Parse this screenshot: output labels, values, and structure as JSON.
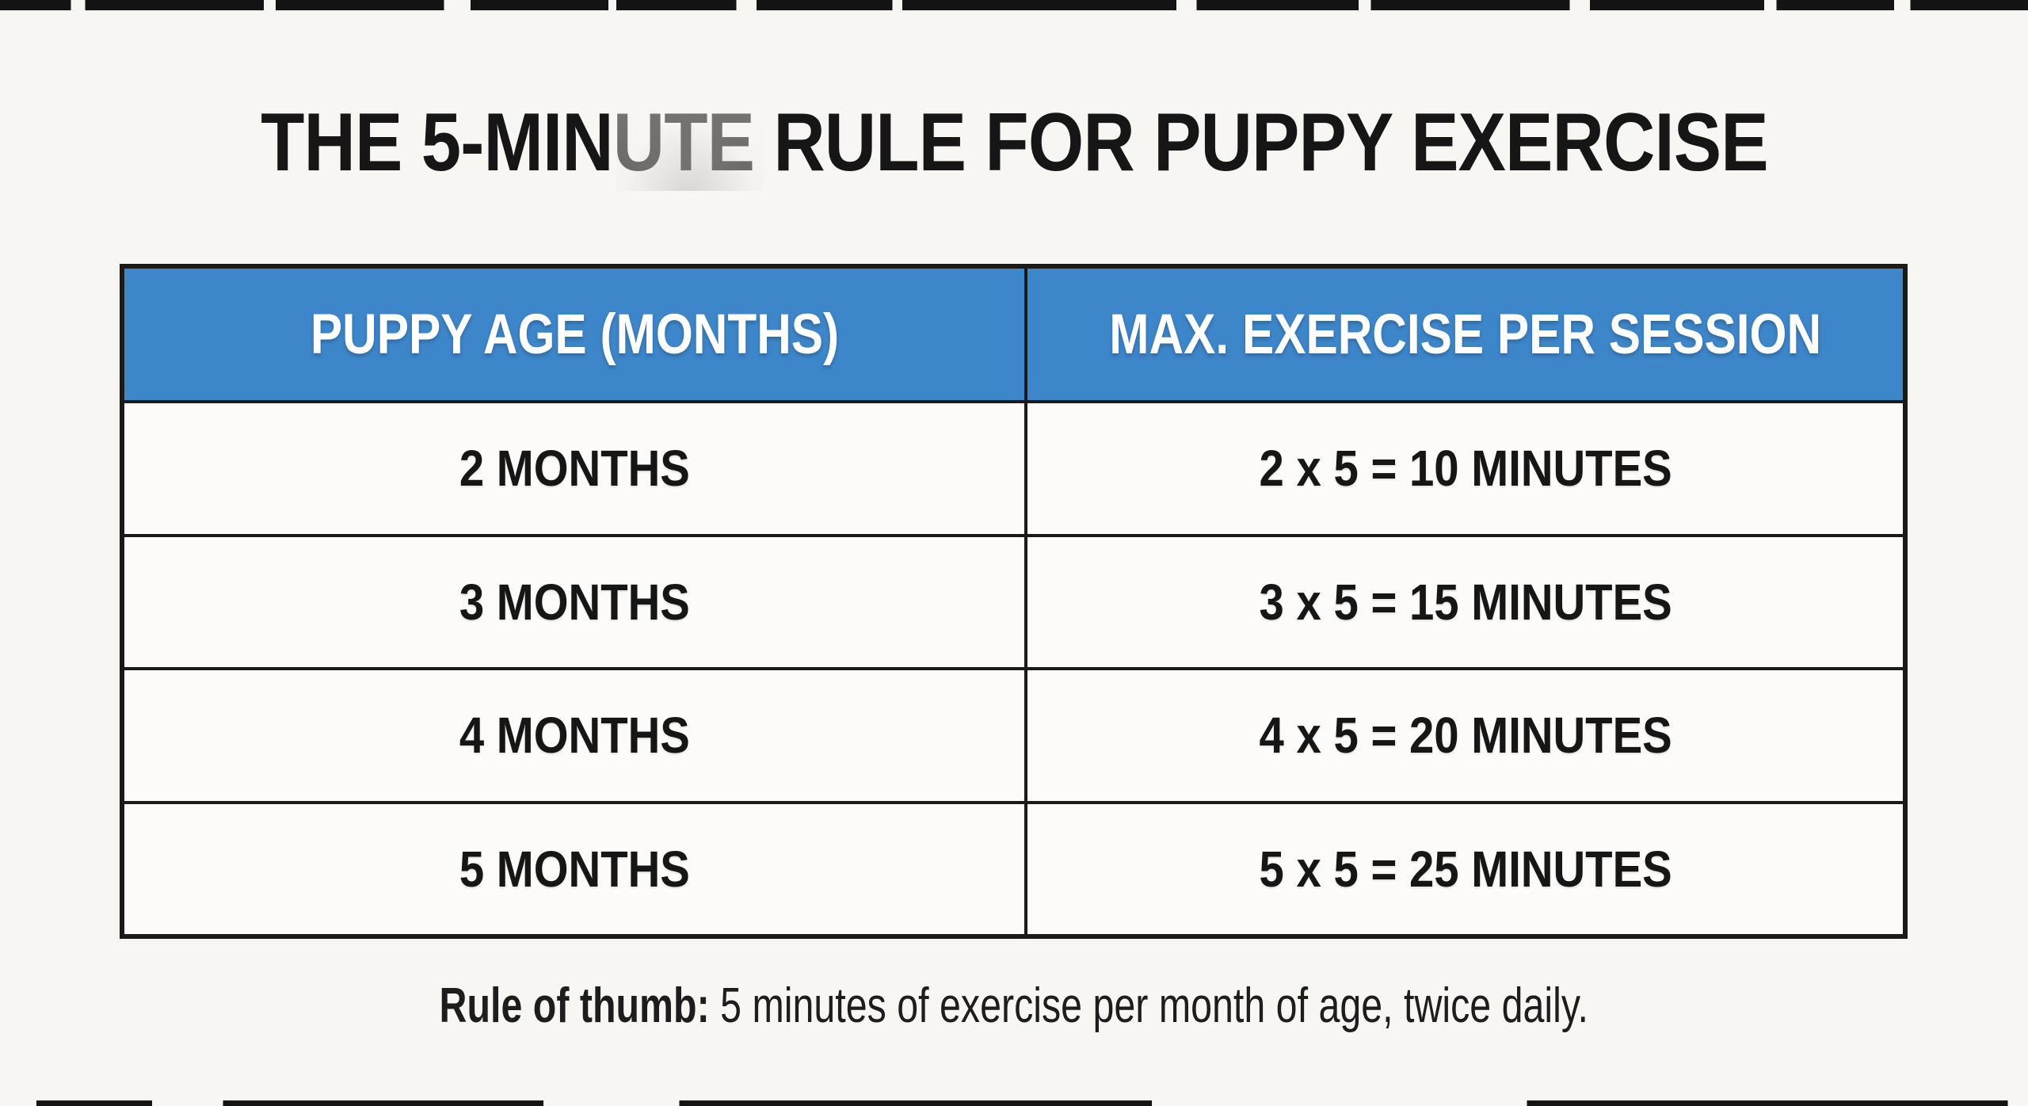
{
  "title": "THE 5-MINUTE RULE FOR PUPPY EXERCISE",
  "table": {
    "headers": [
      "PUPPY AGE (MONTHS)",
      "MAX. EXERCISE PER SESSION"
    ],
    "rows": [
      {
        "age": "2 MONTHS",
        "exercise": "2 x 5 = 10 MINUTES"
      },
      {
        "age": "3 MONTHS",
        "exercise": "3 x 5 = 15 MINUTES"
      },
      {
        "age": "4 MONTHS",
        "exercise": "4 x 5 = 20 MINUTES"
      },
      {
        "age": "5 MONTHS",
        "exercise": "5 x 5 = 25 MINUTES"
      }
    ]
  },
  "note": {
    "label": "Rule of thumb:",
    "text": " 5 minutes of exercise per month of age, twice daily."
  },
  "colors": {
    "accent-blue": "#3E86CA",
    "table-border": "#1A1A1A",
    "page-background": "#F7F6F3",
    "cell-background": "#FCFBF9",
    "header-text": "#FFFFFF",
    "text-dark": "#161616"
  },
  "chart_data": {
    "type": "table",
    "title": "THE 5-MINUTE RULE FOR PUPPY EXERCISE",
    "columns": [
      "PUPPY AGE (MONTHS)",
      "MAX. EXERCISE PER SESSION"
    ],
    "rows": [
      [
        "2 MONTHS",
        "2 x 5 = 10 MINUTES"
      ],
      [
        "3 MONTHS",
        "3 x 5 = 15 MINUTES"
      ],
      [
        "4 MONTHS",
        "4 x 5 = 20 MINUTES"
      ],
      [
        "5 MONTHS",
        "5 x 5 = 25 MINUTES"
      ]
    ],
    "age_months": [
      2,
      3,
      4,
      5
    ],
    "max_minutes_per_session": [
      10,
      15,
      20,
      25
    ],
    "note": "Rule of thumb: 5 minutes of exercise per month of age, twice daily.",
    "header_fill": "#3E86CA",
    "header_text_color": "#FFFFFF"
  }
}
